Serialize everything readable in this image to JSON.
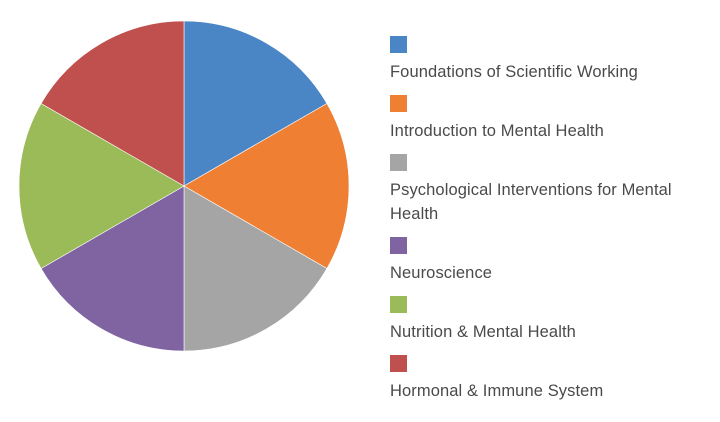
{
  "chart_data": {
    "type": "pie",
    "categories": [
      "Foundations of Scientific Working",
      "Introduction to Mental Health",
      "Psychological Interventions for Mental Health",
      "Neuroscience",
      "Nutrition & Mental Health",
      "Hormonal & Immune System"
    ],
    "values": [
      1,
      1,
      1,
      1,
      1,
      1
    ],
    "colors": [
      "#4a86c5",
      "#ee7f33",
      "#a5a5a5",
      "#8064a2",
      "#9bbb59",
      "#c0504d"
    ],
    "start_angle": "12 o'clock",
    "direction": "clockwise",
    "legend_position": "right"
  }
}
